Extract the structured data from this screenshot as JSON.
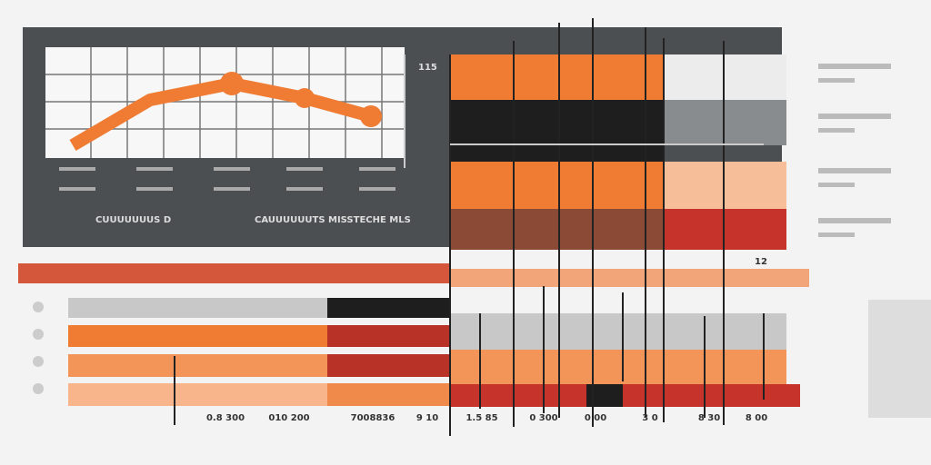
{
  "panel": {
    "axis_label": "115",
    "left_caption": "CUUUUUUUS D",
    "center_caption": "CAUUUUUUTS MISSTECHE MLS"
  },
  "side_label": "12",
  "bottom_labels": [
    "0.8 300",
    "010 200",
    "7008836",
    "9 10",
    "1.5 85",
    "0 300",
    "0 00",
    "3 0",
    "8 30",
    "8 00"
  ]
}
